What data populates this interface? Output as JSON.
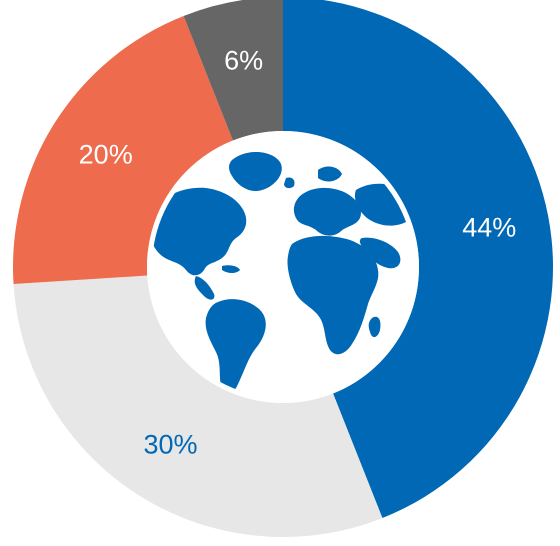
{
  "chart_data": {
    "type": "pie",
    "donut": true,
    "center_icon": "globe-icon",
    "slices": [
      {
        "label": "44%",
        "value": 44,
        "color": "#0068b5",
        "label_color": "#ffffff"
      },
      {
        "label": "30%",
        "value": 30,
        "color": "#e7e7e7",
        "label_color": "#0068b5"
      },
      {
        "label": "20%",
        "value": 20,
        "color": "#ee6b4d",
        "label_color": "#ffffff"
      },
      {
        "label": "6%",
        "value": 6,
        "color": "#666666",
        "label_color": "#ffffff"
      }
    ]
  }
}
